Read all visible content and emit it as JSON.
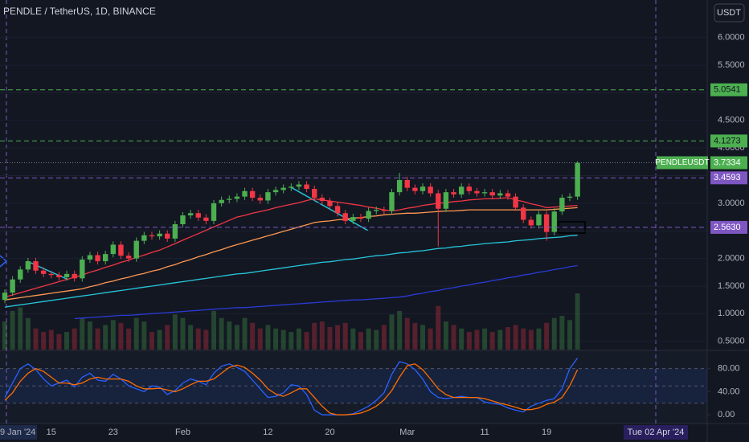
{
  "chart_data": [
    {
      "type": "candlestick",
      "title": "PENDLE / TetherUS, 1D, BINANCE",
      "currency": "USDT",
      "symbol": "PENDLEUSDT",
      "last_price": 3.7334,
      "crosshair_label": "Tue 02 Apr '24",
      "categories": [
        "9 Jan '24",
        null,
        null,
        null,
        null,
        null,
        "15",
        null,
        null,
        null,
        null,
        null,
        null,
        null,
        "23",
        null,
        null,
        null,
        null,
        null,
        null,
        null,
        null,
        "Feb",
        null,
        null,
        null,
        null,
        null,
        null,
        null,
        null,
        null,
        null,
        "12",
        null,
        null,
        null,
        null,
        null,
        null,
        null,
        "20",
        null,
        null,
        null,
        null,
        null,
        null,
        null,
        null,
        null,
        "Mar",
        null,
        null,
        null,
        null,
        null,
        null,
        null,
        null,
        null,
        "11",
        null,
        null,
        null,
        null,
        null,
        null,
        null,
        "19",
        null,
        null,
        null,
        null
      ],
      "open": [
        1.25,
        1.38,
        1.62,
        1.8,
        1.95,
        1.78,
        1.72,
        1.7,
        1.66,
        1.72,
        1.64,
        1.98,
        2.06,
        1.95,
        2.08,
        2.25,
        2.05,
        2.0,
        2.32,
        2.42,
        2.4,
        2.45,
        2.36,
        2.62,
        2.78,
        2.82,
        2.74,
        2.68,
        3.0,
        3.06,
        3.08,
        3.12,
        3.22,
        3.1,
        3.05,
        3.2,
        3.24,
        3.28,
        3.3,
        3.34,
        3.26,
        3.1,
        3.04,
        2.95,
        2.82,
        2.68,
        2.75,
        2.72,
        2.86,
        2.88,
        2.86,
        3.2,
        3.42,
        3.28,
        3.22,
        3.3,
        3.18,
        2.9,
        3.2,
        3.16,
        3.3,
        3.22,
        3.18,
        3.2,
        3.14,
        3.18,
        3.12,
        2.92,
        2.7,
        2.6,
        2.8,
        2.48,
        2.85,
        3.1,
        3.12
      ],
      "high": [
        1.44,
        1.68,
        1.86,
        2.01,
        2.01,
        1.84,
        1.78,
        1.76,
        1.78,
        1.78,
        2.04,
        2.12,
        2.12,
        2.14,
        2.31,
        2.31,
        2.11,
        2.38,
        2.48,
        2.48,
        2.51,
        2.51,
        2.68,
        2.84,
        2.88,
        2.88,
        2.8,
        3.06,
        3.12,
        3.14,
        3.18,
        3.28,
        3.28,
        3.16,
        3.26,
        3.3,
        3.34,
        3.36,
        3.4,
        3.4,
        3.32,
        3.16,
        3.1,
        3.01,
        2.88,
        2.81,
        2.81,
        2.92,
        2.94,
        2.94,
        3.26,
        3.55,
        3.48,
        3.34,
        3.36,
        3.36,
        3.24,
        3.26,
        3.26,
        3.36,
        3.36,
        3.28,
        3.26,
        3.26,
        3.24,
        3.24,
        3.18,
        2.98,
        2.76,
        2.86,
        2.86,
        2.91,
        3.16,
        3.18,
        3.76
      ],
      "low": [
        1.19,
        1.32,
        1.56,
        1.74,
        1.72,
        1.66,
        1.64,
        1.6,
        1.6,
        1.58,
        1.58,
        1.92,
        1.89,
        1.89,
        2.02,
        1.99,
        1.94,
        1.94,
        2.26,
        2.34,
        2.34,
        2.3,
        2.3,
        2.56,
        2.72,
        2.68,
        2.62,
        2.62,
        2.94,
        3.0,
        3.02,
        3.06,
        3.04,
        2.99,
        2.99,
        3.14,
        3.18,
        3.22,
        3.24,
        3.2,
        3.04,
        2.98,
        2.89,
        2.76,
        2.62,
        2.62,
        2.66,
        2.66,
        2.8,
        2.8,
        2.8,
        3.14,
        3.22,
        3.16,
        3.16,
        3.12,
        2.22,
        2.84,
        3.1,
        3.1,
        3.16,
        3.12,
        3.12,
        3.08,
        3.08,
        3.06,
        2.86,
        2.64,
        2.54,
        2.54,
        2.32,
        2.42,
        2.79,
        3.04,
        3.06
      ],
      "close": [
        1.38,
        1.62,
        1.8,
        1.95,
        1.78,
        1.72,
        1.7,
        1.66,
        1.72,
        1.64,
        1.98,
        2.06,
        1.95,
        2.08,
        2.25,
        2.05,
        2.0,
        2.32,
        2.42,
        2.4,
        2.45,
        2.36,
        2.62,
        2.78,
        2.82,
        2.74,
        2.68,
        3.0,
        3.06,
        3.08,
        3.12,
        3.22,
        3.1,
        3.05,
        3.2,
        3.24,
        3.28,
        3.3,
        3.34,
        3.26,
        3.1,
        3.04,
        2.95,
        2.82,
        2.68,
        2.75,
        2.72,
        2.86,
        2.88,
        2.86,
        3.2,
        3.42,
        3.28,
        3.22,
        3.3,
        3.18,
        2.9,
        3.2,
        3.16,
        3.3,
        3.22,
        3.18,
        3.2,
        3.14,
        3.18,
        3.12,
        2.92,
        2.7,
        2.6,
        2.8,
        2.48,
        2.85,
        3.1,
        3.12,
        3.73
      ],
      "volume": [
        40,
        55,
        60,
        45,
        30,
        25,
        28,
        22,
        25,
        30,
        45,
        40,
        30,
        35,
        42,
        38,
        30,
        45,
        40,
        25,
        28,
        35,
        50,
        45,
        35,
        30,
        28,
        55,
        45,
        40,
        35,
        45,
        38,
        30,
        35,
        30,
        28,
        25,
        30,
        25,
        38,
        40,
        32,
        35,
        38,
        30,
        25,
        30,
        28,
        35,
        50,
        55,
        45,
        38,
        35,
        30,
        62,
        40,
        35,
        30,
        25,
        28,
        30,
        25,
        28,
        32,
        35,
        30,
        28,
        30,
        38,
        45,
        48,
        42,
        80
      ],
      "up_color": "#4caf50",
      "down_color": "#f23645",
      "lines": [
        {
          "color": "#f23645",
          "values": [
            1.3,
            1.34,
            1.38,
            1.42,
            1.46,
            1.5,
            1.54,
            1.58,
            1.62,
            1.66,
            1.7,
            1.75,
            1.79,
            1.84,
            1.88,
            1.93,
            1.97,
            2.02,
            2.06,
            2.11,
            2.15,
            2.21,
            2.27,
            2.33,
            2.39,
            2.45,
            2.51,
            2.57,
            2.63,
            2.69,
            2.75,
            2.78,
            2.82,
            2.85,
            2.88,
            2.92,
            2.95,
            2.98,
            3.01,
            3.05,
            3.08,
            3.06,
            3.04,
            3.02,
            3.0,
            2.98,
            2.96,
            2.93,
            2.91,
            2.88,
            2.86,
            2.88,
            2.91,
            2.93,
            2.96,
            2.98,
            3.0,
            3.01,
            3.03,
            3.04,
            3.06,
            3.07,
            3.08,
            3.08,
            3.09,
            3.1,
            3.06,
            3.03,
            2.99,
            2.96,
            2.92,
            2.93,
            2.94,
            2.95,
            2.96
          ]
        },
        {
          "color": "#ff9850",
          "values": [
            1.25,
            1.27,
            1.29,
            1.31,
            1.33,
            1.35,
            1.37,
            1.39,
            1.41,
            1.43,
            1.45,
            1.49,
            1.52,
            1.56,
            1.59,
            1.63,
            1.66,
            1.7,
            1.73,
            1.77,
            1.8,
            1.85,
            1.89,
            1.94,
            1.98,
            2.03,
            2.07,
            2.12,
            2.16,
            2.21,
            2.25,
            2.29,
            2.33,
            2.37,
            2.41,
            2.45,
            2.49,
            2.53,
            2.57,
            2.61,
            2.65,
            2.67,
            2.68,
            2.7,
            2.71,
            2.73,
            2.74,
            2.76,
            2.77,
            2.79,
            2.8,
            2.81,
            2.82,
            2.82,
            2.83,
            2.84,
            2.85,
            2.86,
            2.86,
            2.87,
            2.88,
            2.88,
            2.88,
            2.88,
            2.88,
            2.88,
            2.88,
            2.88,
            2.88,
            2.88,
            2.88,
            2.89,
            2.9,
            2.91,
            2.92
          ]
        },
        {
          "color": "#26c6da",
          "values": [
            1.12,
            1.14,
            1.16,
            1.18,
            1.2,
            1.22,
            1.24,
            1.26,
            1.28,
            1.3,
            1.32,
            1.34,
            1.36,
            1.38,
            1.4,
            1.42,
            1.44,
            1.46,
            1.48,
            1.5,
            1.52,
            1.54,
            1.56,
            1.58,
            1.6,
            1.62,
            1.64,
            1.66,
            1.68,
            1.7,
            1.72,
            1.73,
            1.75,
            1.77,
            1.79,
            1.81,
            1.83,
            1.85,
            1.87,
            1.89,
            1.91,
            1.93,
            1.94,
            1.96,
            1.98,
            1.99,
            2.01,
            2.03,
            2.05,
            2.06,
            2.08,
            2.1,
            2.11,
            2.13,
            2.14,
            2.16,
            2.18,
            2.19,
            2.21,
            2.22,
            2.24,
            2.25,
            2.27,
            2.28,
            2.29,
            2.3,
            2.32,
            2.33,
            2.34,
            2.36,
            2.37,
            2.38,
            2.39,
            2.41,
            2.42
          ]
        },
        {
          "color": "#2a3bd6",
          "values": [
            null,
            null,
            null,
            null,
            null,
            null,
            null,
            null,
            null,
            0.91,
            0.92,
            0.93,
            0.94,
            0.95,
            0.96,
            0.97,
            0.97,
            0.98,
            0.99,
            1.0,
            1.01,
            1.02,
            1.03,
            1.04,
            1.05,
            1.06,
            1.07,
            1.08,
            1.09,
            1.1,
            1.11,
            1.11,
            1.12,
            1.13,
            1.14,
            1.15,
            1.16,
            1.17,
            1.18,
            1.19,
            1.2,
            1.21,
            1.22,
            1.23,
            1.24,
            1.25,
            1.25,
            1.26,
            1.27,
            1.28,
            1.29,
            1.3,
            1.32,
            1.35,
            1.37,
            1.4,
            1.42,
            1.45,
            1.47,
            1.5,
            1.52,
            1.55,
            1.57,
            1.6,
            1.62,
            1.65,
            1.67,
            1.7,
            1.72,
            1.75,
            1.77,
            1.8,
            1.82,
            1.85,
            1.87
          ]
        }
      ],
      "ylim": [
        0.35,
        6.68
      ],
      "yticks": [
        {
          "value": 0.5,
          "label": "0.5000"
        },
        {
          "value": 1,
          "label": "1.0000"
        },
        {
          "value": 1.5,
          "label": "1.5000"
        },
        {
          "value": 2,
          "label": "2.0000"
        },
        {
          "value": 2.5,
          "label": "2.5000"
        },
        {
          "value": 3,
          "label": "3.0000"
        },
        {
          "value": 3.5,
          "label": "3.5000"
        },
        {
          "value": 4,
          "label": "4.0000"
        },
        {
          "value": 4.5,
          "label": "4.5000"
        },
        {
          "value": 5,
          "label": "5.0000"
        },
        {
          "value": 5.5,
          "label": "5.5000"
        },
        {
          "value": 6,
          "label": "6.0000"
        }
      ],
      "grid": true,
      "levels": [
        {
          "value": 5.0541,
          "color": "#4caf50"
        },
        {
          "value": 4.1273,
          "color": "#4caf50"
        },
        {
          "value": 3.4593,
          "color": "#7e57c2"
        },
        {
          "value": 2.563,
          "label": "2.5630",
          "color": "#7e57c2"
        }
      ]
    },
    {
      "type": "line",
      "series": [
        {
          "color": "#2962ff",
          "values": [
            30,
            55,
            80,
            88,
            78,
            62,
            50,
            55,
            60,
            48,
            65,
            72,
            60,
            58,
            70,
            62,
            50,
            45,
            40,
            50,
            48,
            35,
            42,
            55,
            62,
            58,
            52,
            72,
            84,
            88,
            82,
            75,
            60,
            45,
            30,
            32,
            38,
            52,
            50,
            35,
            8,
            0,
            0,
            0,
            0,
            2,
            8,
            15,
            25,
            38,
            70,
            92,
            88,
            78,
            62,
            40,
            30,
            28,
            30,
            32,
            30,
            30,
            22,
            20,
            18,
            12,
            8,
            5,
            15,
            20,
            25,
            28,
            45,
            80,
            98
          ]
        },
        {
          "color": "#ff6d00",
          "values": [
            25,
            38,
            58,
            72,
            80,
            75,
            65,
            55,
            55,
            52,
            55,
            62,
            65,
            62,
            62,
            62,
            58,
            50,
            45,
            45,
            46,
            43,
            40,
            45,
            52,
            58,
            58,
            62,
            72,
            82,
            86,
            82,
            72,
            60,
            45,
            36,
            32,
            38,
            45,
            45,
            30,
            15,
            3,
            0,
            0,
            1,
            3,
            8,
            15,
            26,
            42,
            65,
            85,
            88,
            78,
            62,
            45,
            35,
            30,
            30,
            30,
            30,
            28,
            24,
            20,
            17,
            13,
            9,
            9,
            12,
            18,
            22,
            30,
            50,
            78
          ]
        }
      ],
      "ylim": [
        -15,
        110
      ],
      "yticks": [
        {
          "value": 0,
          "label": "0.00"
        },
        {
          "value": 40,
          "label": "40.00"
        },
        {
          "value": 80,
          "label": "80.00"
        }
      ],
      "bands": [
        20,
        50,
        80
      ]
    }
  ]
}
